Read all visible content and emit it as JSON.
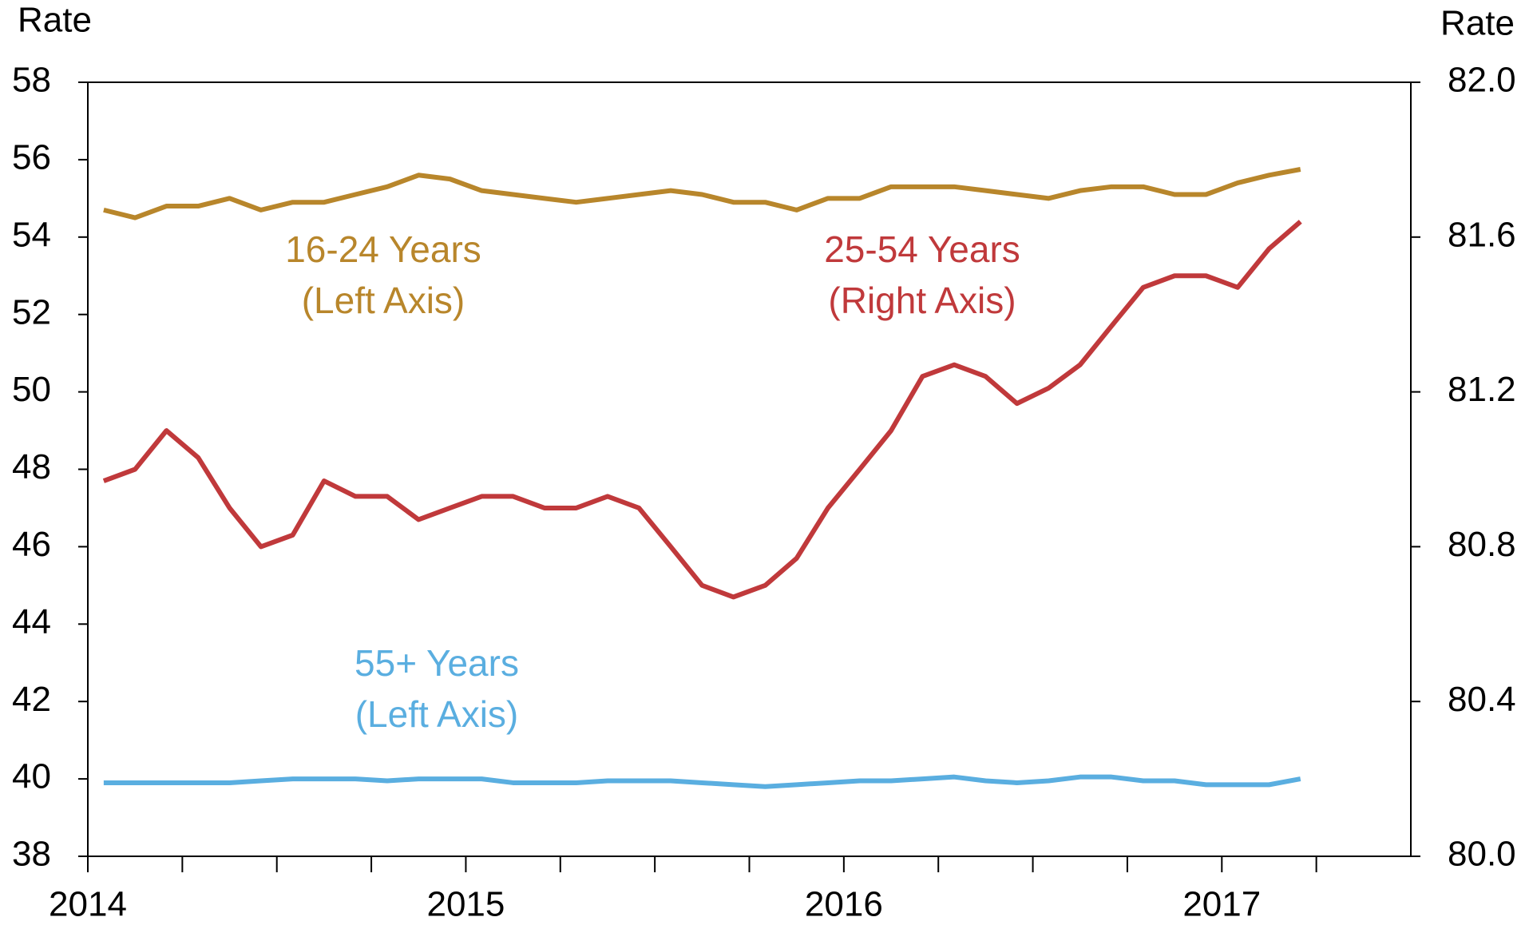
{
  "chart_data": {
    "type": "line",
    "ylabel": "Rate",
    "y2label": "Rate",
    "x": [
      2014.042,
      2014.125,
      2014.208,
      2014.292,
      2014.375,
      2014.458,
      2014.542,
      2014.625,
      2014.708,
      2014.792,
      2014.875,
      2014.958,
      2015.042,
      2015.125,
      2015.208,
      2015.292,
      2015.375,
      2015.458,
      2015.542,
      2015.625,
      2015.708,
      2015.792,
      2015.875,
      2015.958,
      2016.042,
      2016.125,
      2016.208,
      2016.292,
      2016.375,
      2016.458,
      2016.542,
      2016.625,
      2016.708,
      2016.792,
      2016.875,
      2016.958,
      2017.042,
      2017.125,
      2017.208
    ],
    "xlim": [
      2014,
      2017.5
    ],
    "xticks": [
      2014,
      2015,
      2016,
      2017
    ],
    "xminorticks": [
      2014.25,
      2014.5,
      2014.75,
      2015.25,
      2015.5,
      2015.75,
      2016.25,
      2016.5,
      2016.75,
      2017.25
    ],
    "ylim": [
      38,
      58
    ],
    "yticks": [
      38,
      40,
      42,
      44,
      46,
      48,
      50,
      52,
      54,
      56,
      58
    ],
    "y2lim": [
      80,
      82
    ],
    "y2ticks": [
      {
        "value": 80,
        "label": "80.0"
      },
      80.4,
      80.8,
      81.2,
      81.6,
      {
        "value": 82,
        "label": "82.0"
      }
    ],
    "series": [
      {
        "name": "16-24 Years",
        "note": "(Left Axis)",
        "color": "#b8862b",
        "axis": "y",
        "values": [
          54.7,
          54.5,
          54.8,
          54.8,
          55.0,
          54.7,
          54.9,
          54.9,
          55.1,
          55.3,
          55.6,
          55.5,
          55.2,
          55.1,
          55.0,
          54.9,
          55.0,
          55.1,
          55.2,
          55.1,
          54.9,
          54.9,
          54.7,
          55.0,
          55.0,
          55.3,
          55.3,
          55.3,
          55.2,
          55.1,
          55.0,
          55.2,
          55.3,
          55.3,
          55.1,
          55.1,
          55.4,
          55.6,
          55.75
        ]
      },
      {
        "name": "25-54 Years",
        "note": "(Right Axis)",
        "color": "#c0393b",
        "axis": "y2",
        "values": [
          80.97,
          81.0,
          81.1,
          81.03,
          80.9,
          80.8,
          80.83,
          80.97,
          80.93,
          80.93,
          80.87,
          80.9,
          80.93,
          80.93,
          80.9,
          80.9,
          80.93,
          80.9,
          80.8,
          80.7,
          80.67,
          80.7,
          80.77,
          80.9,
          81.0,
          81.1,
          81.24,
          81.27,
          81.24,
          81.17,
          81.21,
          81.27,
          81.37,
          81.47,
          81.5,
          81.5,
          81.47,
          81.57,
          81.64
        ]
      },
      {
        "name": "55+ Years",
        "note": "(Left Axis)",
        "color": "#5aaee0",
        "axis": "y",
        "values": [
          39.9,
          39.9,
          39.9,
          39.9,
          39.9,
          39.95,
          40.0,
          40.0,
          40.0,
          39.95,
          40.0,
          40.0,
          40.0,
          39.9,
          39.9,
          39.9,
          39.95,
          39.95,
          39.95,
          39.9,
          39.85,
          39.8,
          39.85,
          39.9,
          39.95,
          39.95,
          40.0,
          40.05,
          39.95,
          39.9,
          39.95,
          40.05,
          40.05,
          39.95,
          39.95,
          39.85,
          39.85,
          39.85,
          40.0
        ]
      }
    ]
  }
}
